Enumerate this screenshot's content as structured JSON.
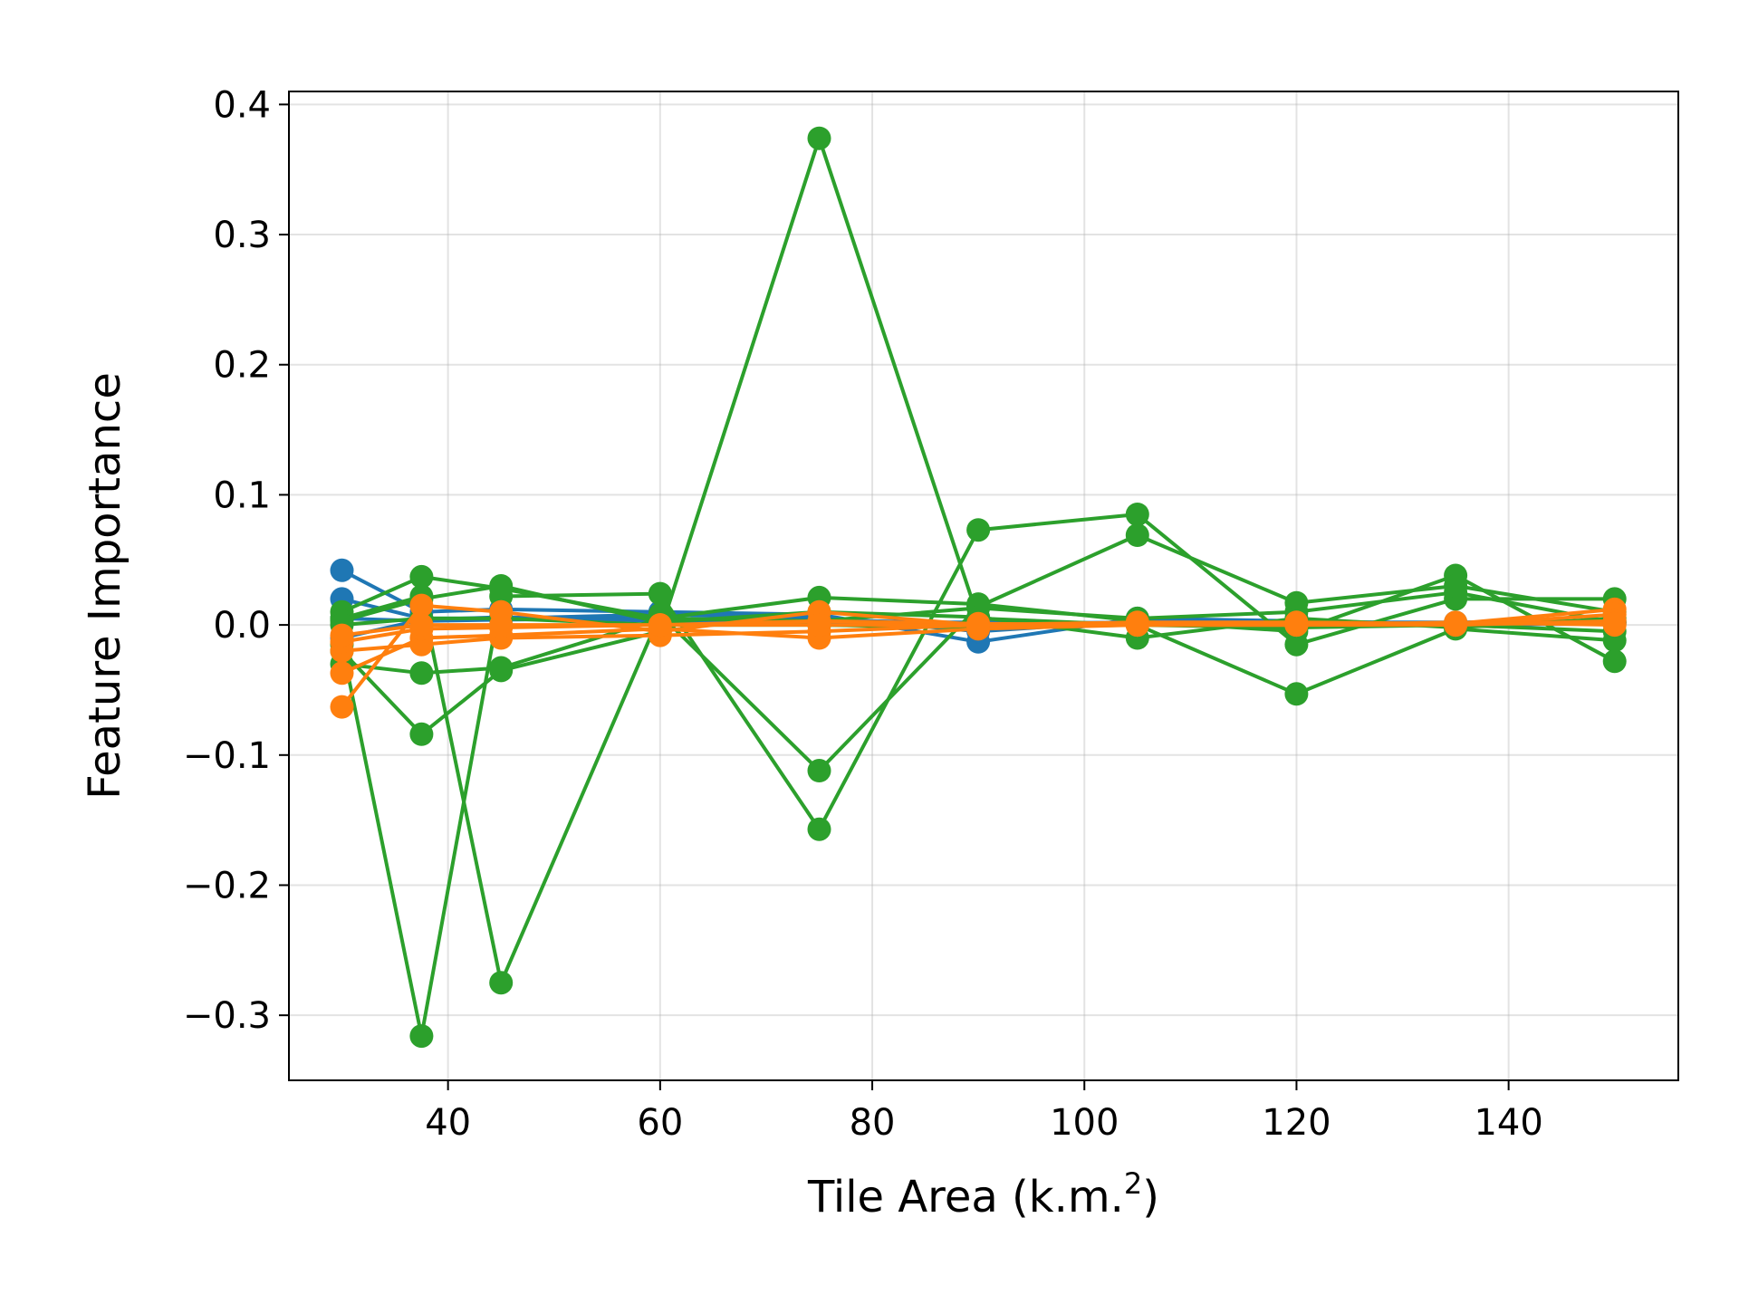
{
  "chart_data": {
    "type": "line",
    "xlabel": "Tile Area (k.m.",
    "xlabel_superscript": "2",
    "xlabel_suffix": ")",
    "ylabel": "Feature Importance",
    "xlim": [
      25,
      156
    ],
    "ylim": [
      -0.35,
      0.41
    ],
    "xticks": [
      40,
      60,
      80,
      100,
      120,
      140
    ],
    "yticks": [
      0.4,
      0.3,
      0.2,
      0.1,
      0.0,
      -0.1,
      -0.2,
      -0.3
    ],
    "ytick_labels": [
      "0.4",
      "0.3",
      "0.2",
      "0.1",
      "0.0",
      "−0.1",
      "−0.2",
      "−0.3"
    ],
    "grid": true,
    "x": [
      30,
      37.5,
      45,
      60,
      75,
      90,
      105,
      120,
      135,
      150
    ],
    "colors": {
      "blue": "#1f77b4",
      "orange": "#ff7f0e",
      "green": "#2ca02c"
    },
    "series": [
      {
        "color": "blue",
        "values": [
          0.042,
          0.01,
          0.012,
          0.01,
          0.008,
          -0.013,
          0.005,
          0.003,
          0.001,
          0.002
        ]
      },
      {
        "color": "blue",
        "values": [
          0.02,
          0.005,
          0.005,
          0.008,
          0.006,
          -0.005,
          0.003,
          0.002,
          0.0,
          0.001
        ]
      },
      {
        "color": "blue",
        "values": [
          0.005,
          0.003,
          0.004,
          0.005,
          0.004,
          0.001,
          0.002,
          0.001,
          0.001,
          0.002
        ]
      },
      {
        "color": "blue",
        "values": [
          -0.01,
          0.004,
          0.006,
          0.003,
          0.002,
          0.002,
          0.001,
          0.002,
          0.002,
          0.003
        ]
      },
      {
        "color": "green",
        "values": [
          0.01,
          0.037,
          0.028,
          0.005,
          0.003,
          0.013,
          0.005,
          0.01,
          0.025,
          0.002
        ]
      },
      {
        "color": "green",
        "values": [
          -0.03,
          -0.037,
          -0.033,
          0.005,
          0.021,
          0.016,
          0.003,
          -0.005,
          0.038,
          -0.028
        ]
      },
      {
        "color": "green",
        "values": [
          -0.02,
          -0.084,
          -0.035,
          -0.005,
          0.374,
          0.005,
          0.0,
          -0.053,
          -0.003,
          -0.012
        ]
      },
      {
        "color": "green",
        "values": [
          -0.015,
          -0.316,
          0.022,
          0.024,
          -0.157,
          0.073,
          0.085,
          -0.015,
          0.02,
          0.02
        ]
      },
      {
        "color": "green",
        "values": [
          0.005,
          0.022,
          -0.275,
          0.008,
          -0.112,
          0.014,
          0.069,
          0.017,
          0.03,
          0.01
        ]
      },
      {
        "color": "green",
        "values": [
          0.003,
          0.02,
          0.03,
          0.002,
          0.01,
          0.006,
          -0.01,
          0.005,
          -0.002,
          0.005
        ]
      },
      {
        "color": "green",
        "values": [
          0.0,
          0.005,
          0.005,
          0.0,
          0.0,
          -0.002,
          0.0,
          -0.002,
          0.0,
          -0.005
        ]
      },
      {
        "color": "orange",
        "values": [
          -0.063,
          0.015,
          0.01,
          -0.005,
          0.01,
          0.0,
          0.002,
          0.002,
          0.001,
          0.012
        ]
      },
      {
        "color": "orange",
        "values": [
          -0.037,
          -0.01,
          -0.008,
          -0.003,
          -0.01,
          -0.003,
          0.0,
          0.0,
          0.0,
          0.008
        ]
      },
      {
        "color": "orange",
        "values": [
          -0.02,
          -0.015,
          -0.01,
          -0.008,
          -0.005,
          0.0,
          0.0,
          0.0,
          0.002,
          0.0
        ]
      },
      {
        "color": "orange",
        "values": [
          -0.013,
          -0.003,
          -0.002,
          0.0,
          0.003,
          0.001,
          0.0,
          0.001,
          0.0,
          0.003
        ]
      },
      {
        "color": "orange",
        "values": [
          -0.008,
          0.0,
          0.0,
          0.0,
          0.0,
          0.0,
          0.0,
          0.0,
          0.001,
          0.001
        ]
      }
    ]
  }
}
